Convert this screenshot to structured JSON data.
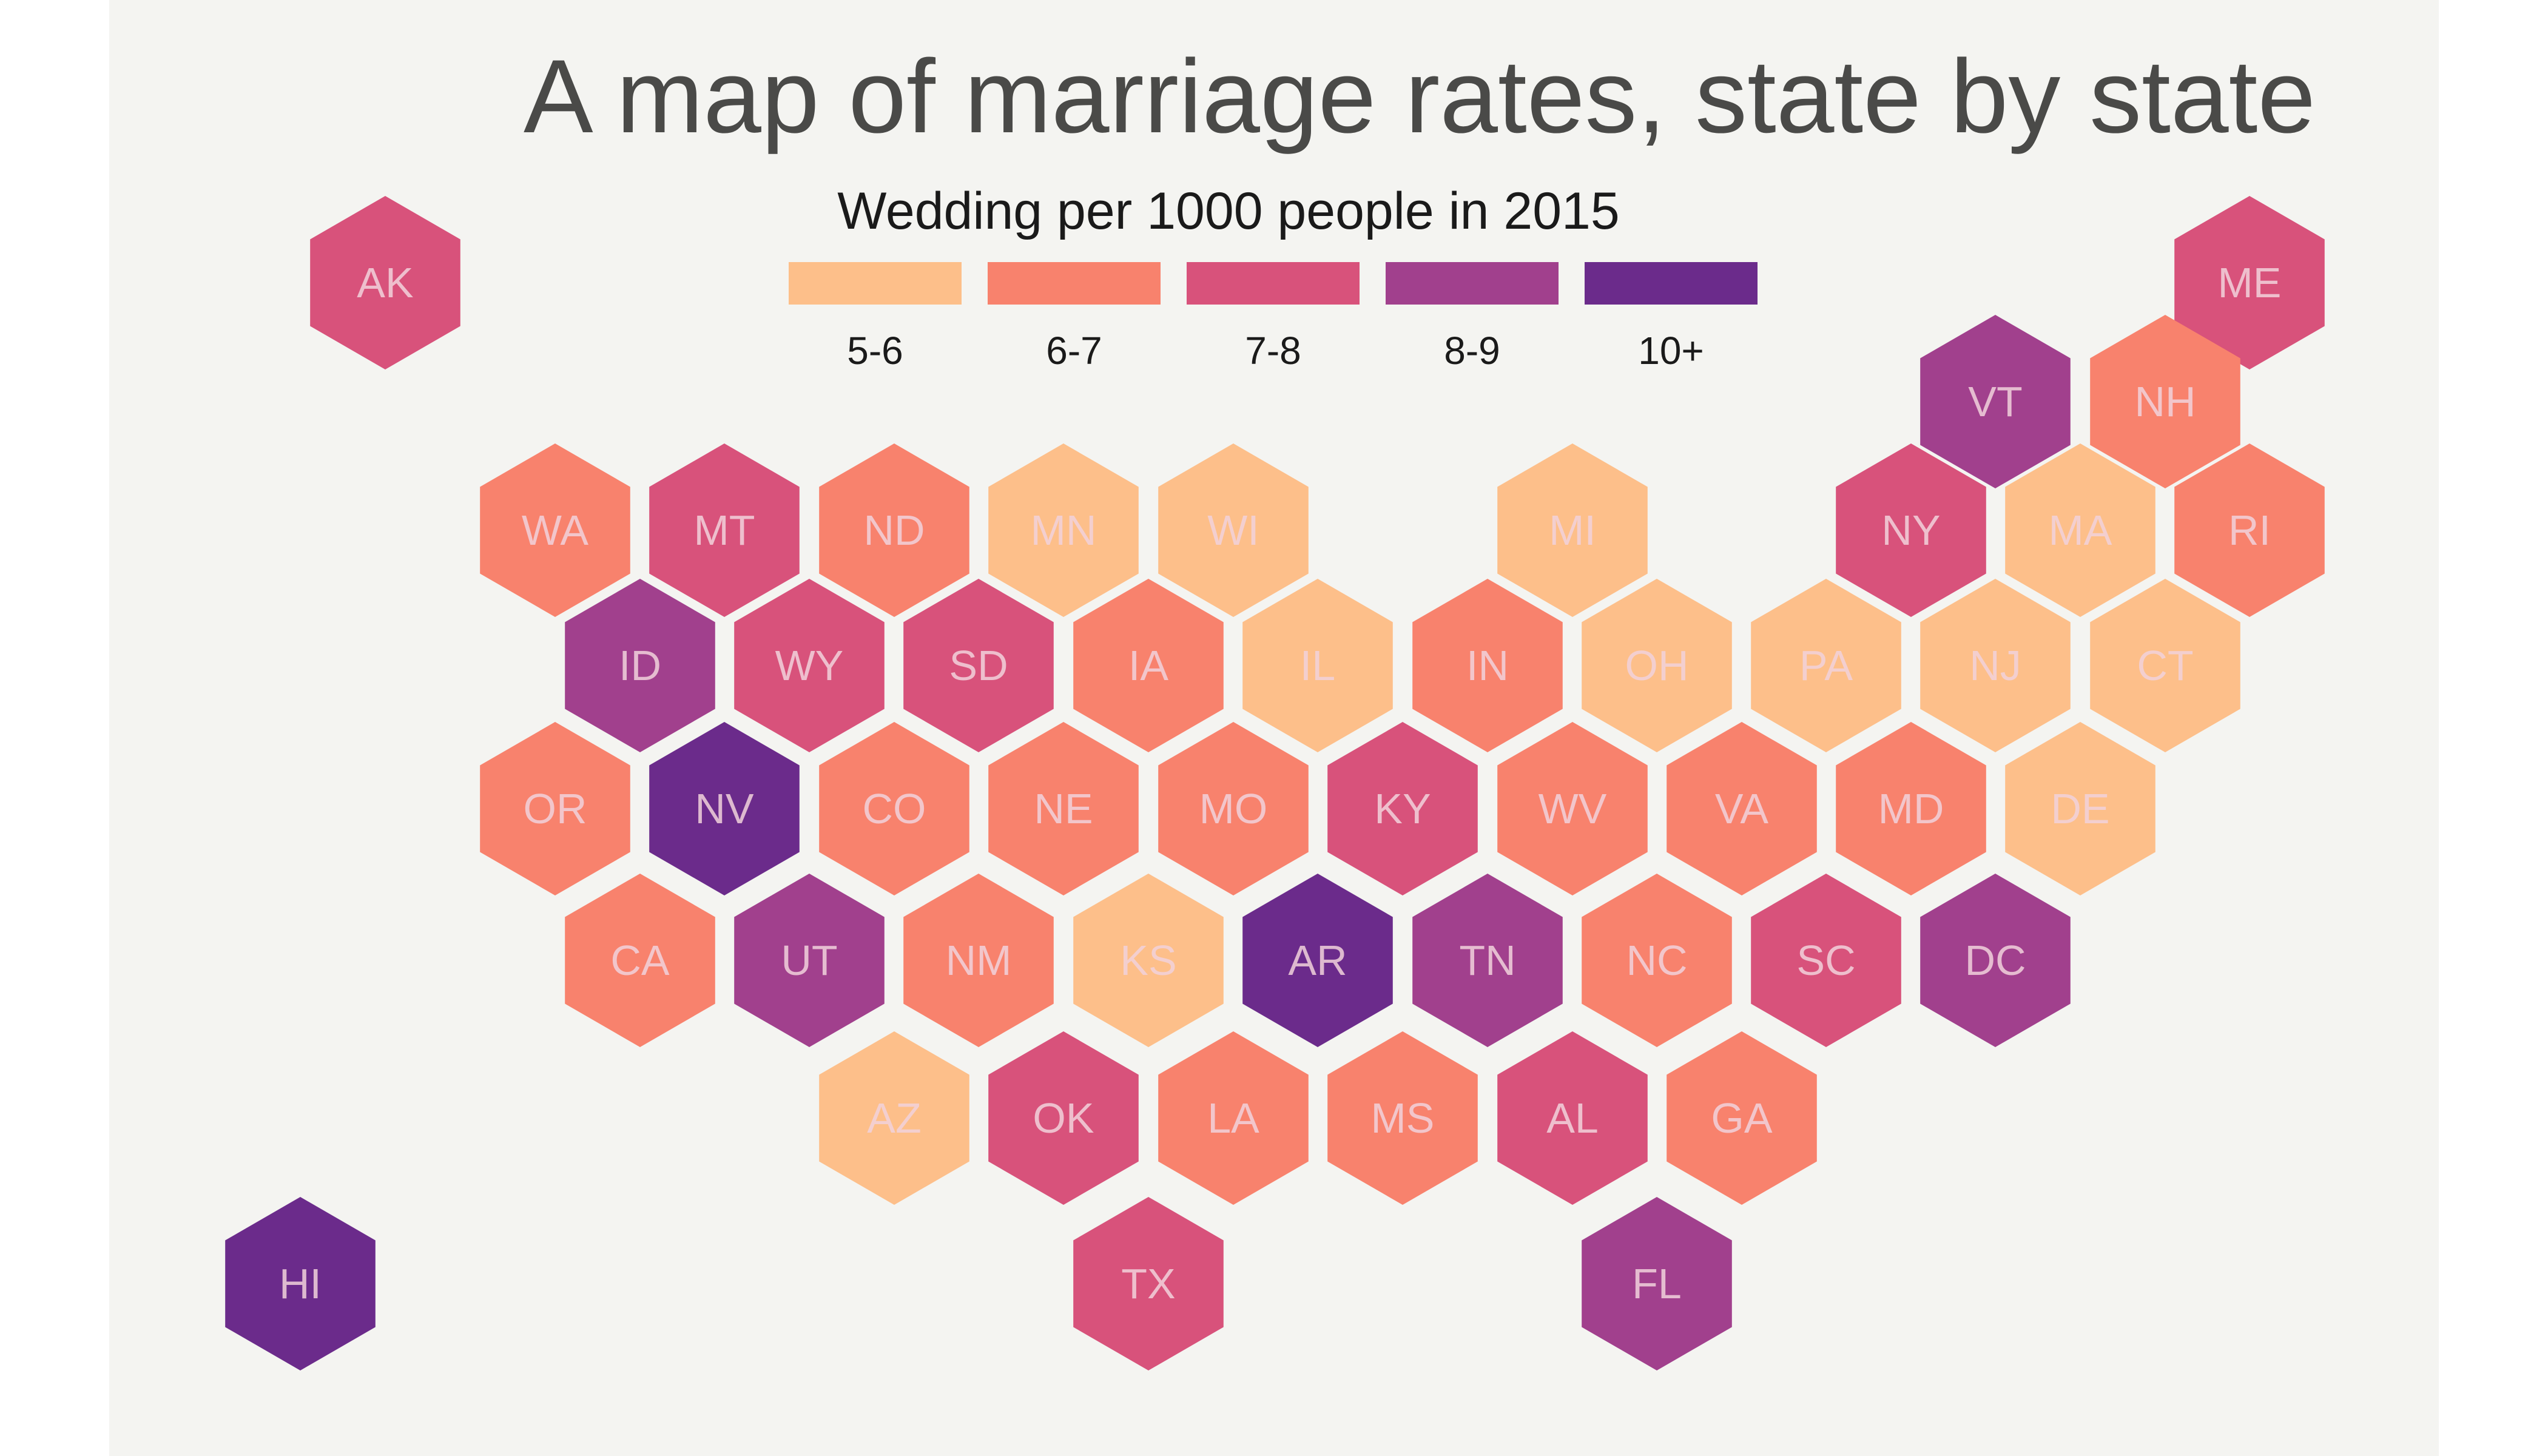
{
  "title": "A map of marriage rates, state by state",
  "legend": {
    "title": "Wedding per 1000 people in 2015",
    "bins": [
      {
        "label": "5-6",
        "color": "#fdbf8a"
      },
      {
        "label": "6-7",
        "color": "#f8826d"
      },
      {
        "label": "7-8",
        "color": "#d8527b"
      },
      {
        "label": "8-9",
        "color": "#a1408d"
      },
      {
        "label": "10+",
        "color": "#6b2b8b"
      }
    ]
  },
  "states": [
    {
      "abbr": "AK",
      "bin": "7-8"
    },
    {
      "abbr": "ME",
      "bin": "7-8"
    },
    {
      "abbr": "VT",
      "bin": "8-9"
    },
    {
      "abbr": "NH",
      "bin": "6-7"
    },
    {
      "abbr": "WA",
      "bin": "6-7"
    },
    {
      "abbr": "MT",
      "bin": "7-8"
    },
    {
      "abbr": "ND",
      "bin": "6-7"
    },
    {
      "abbr": "MN",
      "bin": "5-6"
    },
    {
      "abbr": "WI",
      "bin": "5-6"
    },
    {
      "abbr": "MI",
      "bin": "5-6"
    },
    {
      "abbr": "NY",
      "bin": "7-8"
    },
    {
      "abbr": "MA",
      "bin": "5-6"
    },
    {
      "abbr": "RI",
      "bin": "6-7"
    },
    {
      "abbr": "ID",
      "bin": "8-9"
    },
    {
      "abbr": "WY",
      "bin": "7-8"
    },
    {
      "abbr": "SD",
      "bin": "7-8"
    },
    {
      "abbr": "IA",
      "bin": "6-7"
    },
    {
      "abbr": "IL",
      "bin": "5-6"
    },
    {
      "abbr": "IN",
      "bin": "6-7"
    },
    {
      "abbr": "OH",
      "bin": "5-6"
    },
    {
      "abbr": "PA",
      "bin": "5-6"
    },
    {
      "abbr": "NJ",
      "bin": "5-6"
    },
    {
      "abbr": "CT",
      "bin": "5-6"
    },
    {
      "abbr": "OR",
      "bin": "6-7"
    },
    {
      "abbr": "NV",
      "bin": "10+"
    },
    {
      "abbr": "CO",
      "bin": "6-7"
    },
    {
      "abbr": "NE",
      "bin": "6-7"
    },
    {
      "abbr": "MO",
      "bin": "6-7"
    },
    {
      "abbr": "KY",
      "bin": "7-8"
    },
    {
      "abbr": "WV",
      "bin": "6-7"
    },
    {
      "abbr": "VA",
      "bin": "6-7"
    },
    {
      "abbr": "MD",
      "bin": "6-7"
    },
    {
      "abbr": "DE",
      "bin": "5-6"
    },
    {
      "abbr": "CA",
      "bin": "6-7"
    },
    {
      "abbr": "UT",
      "bin": "8-9"
    },
    {
      "abbr": "NM",
      "bin": "6-7"
    },
    {
      "abbr": "KS",
      "bin": "5-6"
    },
    {
      "abbr": "AR",
      "bin": "10+"
    },
    {
      "abbr": "TN",
      "bin": "8-9"
    },
    {
      "abbr": "NC",
      "bin": "6-7"
    },
    {
      "abbr": "SC",
      "bin": "7-8"
    },
    {
      "abbr": "DC",
      "bin": "8-9"
    },
    {
      "abbr": "AZ",
      "bin": "5-6"
    },
    {
      "abbr": "OK",
      "bin": "7-8"
    },
    {
      "abbr": "LA",
      "bin": "6-7"
    },
    {
      "abbr": "MS",
      "bin": "6-7"
    },
    {
      "abbr": "AL",
      "bin": "7-8"
    },
    {
      "abbr": "GA",
      "bin": "6-7"
    },
    {
      "abbr": "HI",
      "bin": "10+"
    },
    {
      "abbr": "TX",
      "bin": "7-8"
    },
    {
      "abbr": "FL",
      "bin": "8-9"
    }
  ]
}
